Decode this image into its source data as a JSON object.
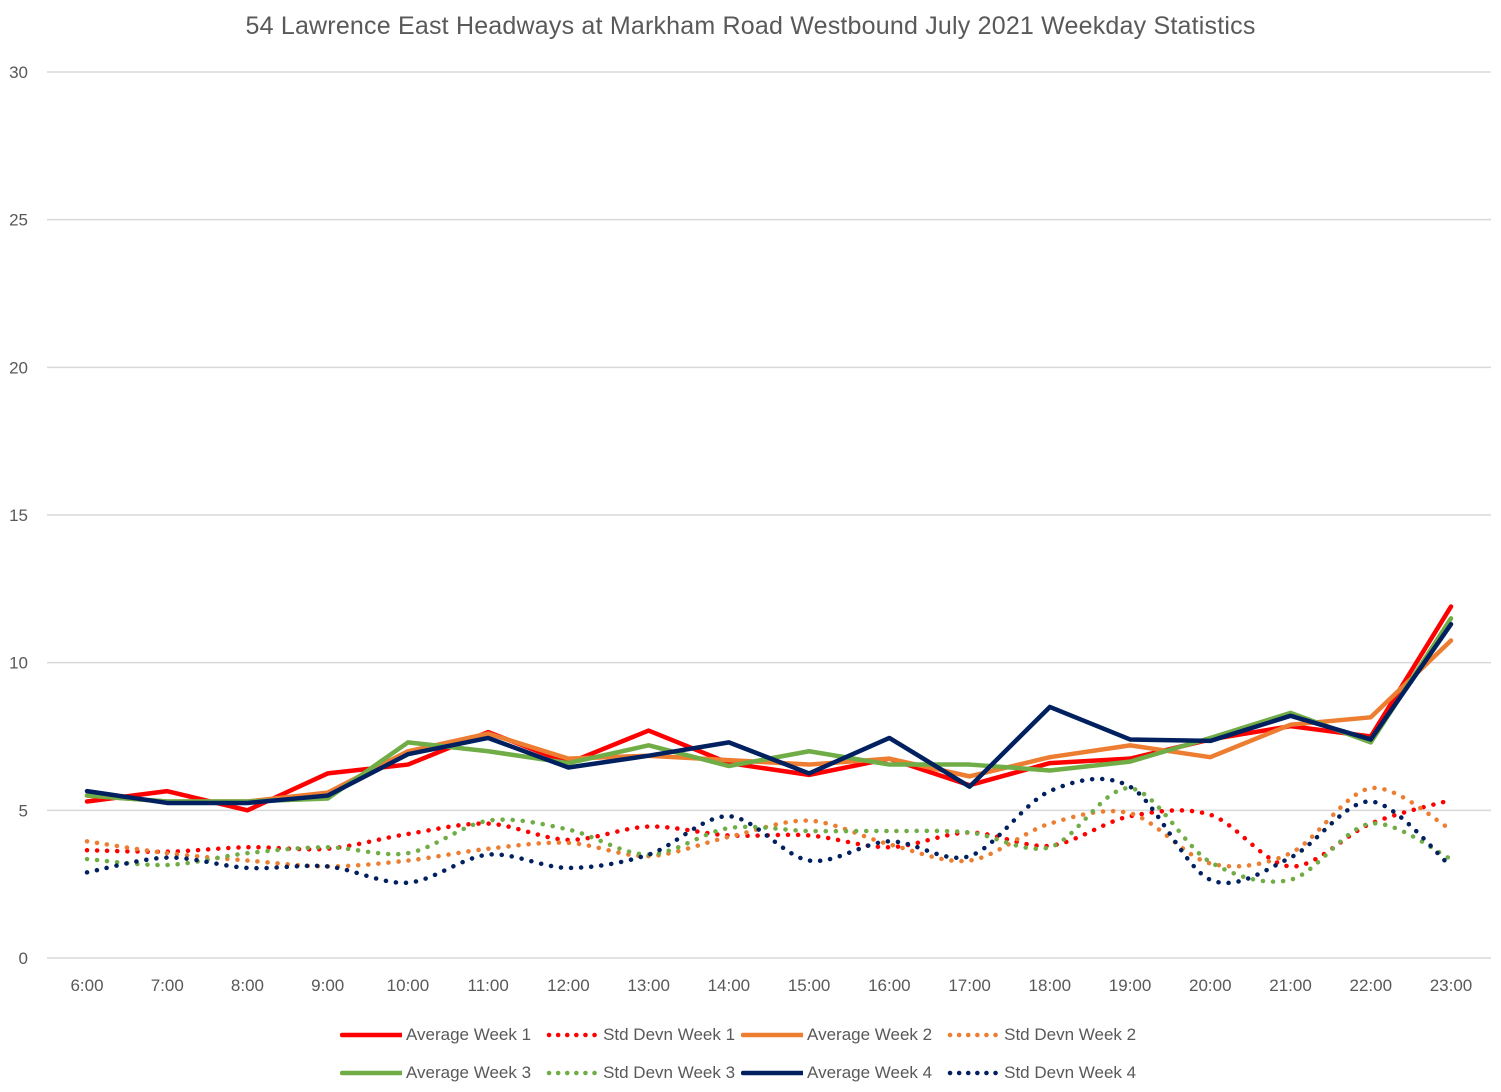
{
  "chart_data": {
    "type": "line",
    "title": "54 Lawrence East Headways at Markham Road Westbound July 2021 Weekday Statistics",
    "xlabel": "",
    "ylabel": "",
    "ylim": [
      0,
      30
    ],
    "yticks": [
      0,
      5,
      10,
      15,
      20,
      25,
      30
    ],
    "grid": true,
    "legend_position": "bottom",
    "categories": [
      "6:00",
      "7:00",
      "8:00",
      "9:00",
      "10:00",
      "11:00",
      "12:00",
      "13:00",
      "14:00",
      "15:00",
      "16:00",
      "17:00",
      "18:00",
      "19:00",
      "20:00",
      "21:00",
      "22:00",
      "23:00"
    ],
    "series": [
      {
        "name": "Average Week 1",
        "color": "#FF0000",
        "style": "solid",
        "smooth": false,
        "values": [
          5.3,
          5.65,
          5.0,
          6.25,
          6.55,
          7.65,
          6.6,
          7.7,
          6.6,
          6.2,
          6.75,
          5.85,
          6.6,
          6.75,
          7.4,
          7.85,
          7.5,
          11.9
        ]
      },
      {
        "name": "Std Devn Week 1",
        "color": "#FF0000",
        "style": "dotted",
        "smooth": true,
        "values": [
          3.65,
          3.6,
          3.75,
          3.7,
          4.2,
          4.55,
          4.0,
          4.45,
          4.15,
          4.15,
          3.75,
          4.25,
          3.8,
          4.8,
          4.85,
          3.1,
          4.55,
          5.35
        ]
      },
      {
        "name": "Average Week 2",
        "color": "#ED7D31",
        "style": "solid",
        "smooth": false,
        "values": [
          5.5,
          5.3,
          5.3,
          5.6,
          7.0,
          7.6,
          6.75,
          6.85,
          6.7,
          6.55,
          6.75,
          6.15,
          6.8,
          7.2,
          6.8,
          7.9,
          8.15,
          10.75
        ]
      },
      {
        "name": "Std Devn Week 2",
        "color": "#ED7D31",
        "style": "dotted",
        "smooth": true,
        "values": [
          3.95,
          3.55,
          3.3,
          3.1,
          3.3,
          3.7,
          3.9,
          3.45,
          4.1,
          4.65,
          3.85,
          3.3,
          4.55,
          4.9,
          3.2,
          3.55,
          5.75,
          4.35
        ]
      },
      {
        "name": "Average Week 3",
        "color": "#70AD47",
        "style": "solid",
        "smooth": false,
        "values": [
          5.5,
          5.3,
          5.3,
          5.4,
          7.3,
          7.0,
          6.6,
          7.2,
          6.5,
          7.0,
          6.55,
          6.55,
          6.35,
          6.65,
          7.45,
          8.3,
          7.3,
          11.5
        ]
      },
      {
        "name": "Std Devn Week 3",
        "color": "#70AD47",
        "style": "dotted",
        "smooth": true,
        "values": [
          3.35,
          3.15,
          3.55,
          3.75,
          3.55,
          4.65,
          4.35,
          3.5,
          4.4,
          4.3,
          4.3,
          4.25,
          3.75,
          5.75,
          3.25,
          2.65,
          4.55,
          3.35
        ]
      },
      {
        "name": "Average Week 4",
        "color": "#002060",
        "style": "solid",
        "smooth": false,
        "values": [
          5.65,
          5.25,
          5.25,
          5.5,
          6.9,
          7.45,
          6.45,
          6.85,
          7.3,
          6.25,
          7.45,
          5.8,
          8.5,
          7.4,
          7.35,
          8.2,
          7.4,
          11.3
        ]
      },
      {
        "name": "Std Devn Week 4",
        "color": "#002060",
        "style": "dotted",
        "smooth": true,
        "values": [
          2.9,
          3.4,
          3.05,
          3.1,
          2.55,
          3.5,
          3.05,
          3.5,
          4.8,
          3.3,
          3.95,
          3.45,
          5.65,
          5.8,
          2.65,
          3.4,
          5.3,
          3.1
        ]
      }
    ]
  },
  "colors": {
    "gridline": "#D9D9D9",
    "text": "#595959"
  }
}
